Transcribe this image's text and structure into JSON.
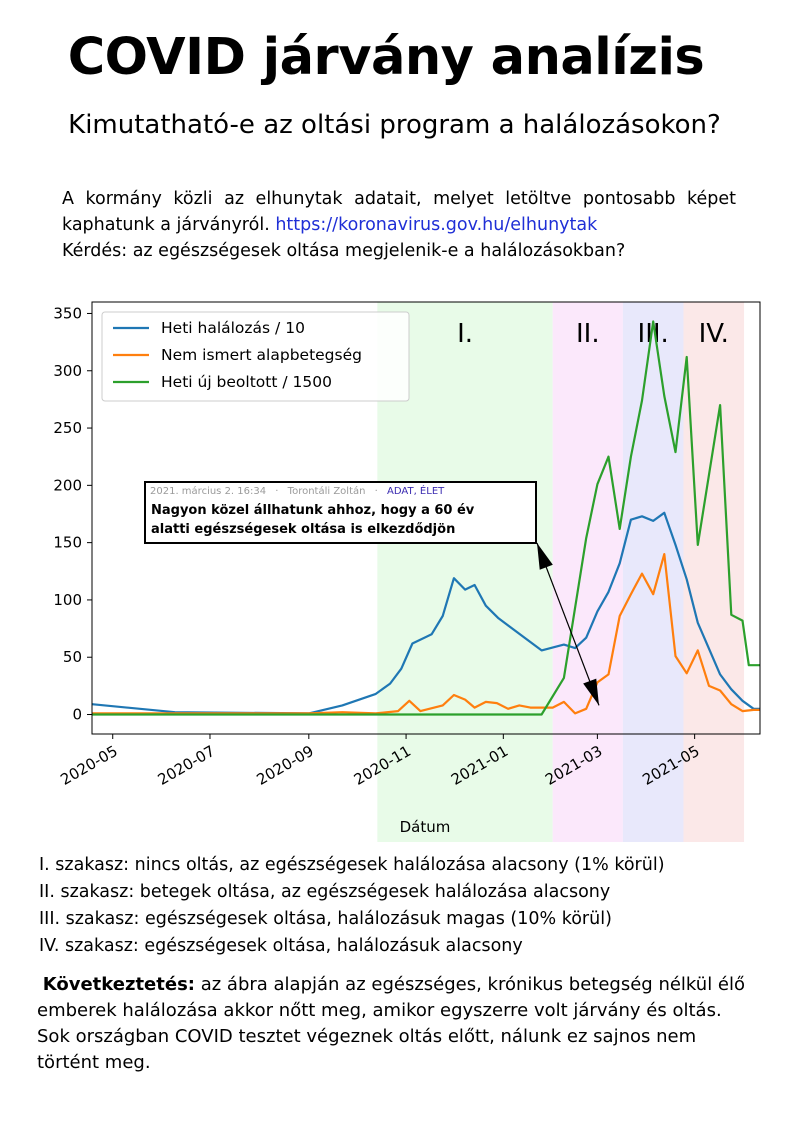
{
  "header": {
    "title": "COVID járvány analízis",
    "subtitle": "Kimutatható-e az oltási program a halálozásokon?"
  },
  "intro": {
    "line1": "A kormány közli az elhunytak adatait, melyet letöltve pontosabb képet kaphatunk a járványról.",
    "link": "https://koronavirus.gov.hu/elhunytak",
    "line2": "Kérdés: az egészségesek oltása megjelenik-e a halálozásokban?"
  },
  "chart_data": {
    "type": "line",
    "xlabel": "Dátum",
    "ylabel": "",
    "ylim": [
      -17,
      360
    ],
    "yticks": [
      0,
      50,
      100,
      150,
      200,
      250,
      300,
      350
    ],
    "xticks": [
      "2020-05",
      "2020-07",
      "2020-09",
      "2020-11",
      "2021-01",
      "2021-03",
      "2021-05"
    ],
    "xrange": [
      "2020-04-18",
      "2021-06-11"
    ],
    "grid": false,
    "legend": "top-left",
    "phases": [
      {
        "label": "I.",
        "start": "2020-10-14",
        "end": "2021-02-01",
        "color": "#e8fbe8"
      },
      {
        "label": "II.",
        "start": "2021-02-01",
        "end": "2021-03-17",
        "color": "#fbe8fb"
      },
      {
        "label": "III.",
        "start": "2021-03-17",
        "end": "2021-04-24",
        "color": "#e8e8fb"
      },
      {
        "label": "IV.",
        "start": "2021-04-24",
        "end": "2021-06-01",
        "color": "#fbe8e8"
      }
    ],
    "series": [
      {
        "name": "Heti halálozás / 10",
        "color": "#1f77b4",
        "x": [
          "2020-04-18",
          "2020-06-09",
          "2020-09-01",
          "2020-09-22",
          "2020-10-13",
          "2020-10-22",
          "2020-10-29",
          "2020-11-05",
          "2020-11-17",
          "2020-11-24",
          "2020-12-01",
          "2020-12-08",
          "2020-12-14",
          "2020-12-21",
          "2020-12-29",
          "2021-01-25",
          "2021-02-08",
          "2021-02-15",
          "2021-02-22",
          "2021-03-01",
          "2021-03-08",
          "2021-03-15",
          "2021-03-22",
          "2021-03-29",
          "2021-04-05",
          "2021-04-12",
          "2021-04-19",
          "2021-04-26",
          "2021-05-03",
          "2021-05-17",
          "2021-05-24",
          "2021-05-31",
          "2021-06-07",
          "2021-06-11"
        ],
        "y": [
          9,
          2,
          1,
          8,
          18,
          27,
          40,
          62,
          70,
          86,
          119,
          109,
          113,
          95,
          84,
          56,
          61,
          58,
          67,
          90,
          107,
          132,
          170,
          173,
          169,
          176,
          148,
          118,
          80,
          35,
          22,
          12,
          5,
          5
        ]
      },
      {
        "name": "Nem ismert alapbetegség",
        "color": "#ff7f0e",
        "x": [
          "2020-04-18",
          "2020-09-01",
          "2020-09-22",
          "2020-10-13",
          "2020-10-27",
          "2020-11-03",
          "2020-11-10",
          "2020-11-24",
          "2020-12-01",
          "2020-12-08",
          "2020-12-14",
          "2020-12-21",
          "2020-12-28",
          "2021-01-04",
          "2021-01-11",
          "2021-01-18",
          "2021-01-25",
          "2021-02-01",
          "2021-02-08",
          "2021-02-15",
          "2021-02-22",
          "2021-03-01",
          "2021-03-08",
          "2021-03-15",
          "2021-03-22",
          "2021-03-29",
          "2021-04-05",
          "2021-04-12",
          "2021-04-19",
          "2021-04-26",
          "2021-05-03",
          "2021-05-10",
          "2021-05-17",
          "2021-05-24",
          "2021-05-31",
          "2021-06-07",
          "2021-06-11"
        ],
        "y": [
          1,
          1,
          2,
          1,
          3,
          12,
          3,
          8,
          17,
          13,
          6,
          11,
          10,
          5,
          8,
          6,
          6,
          6,
          11,
          1,
          5,
          28,
          35,
          86,
          105,
          123,
          105,
          140,
          51,
          36,
          56,
          25,
          21,
          9,
          3,
          4,
          4
        ]
      },
      {
        "name": "Heti új beoltott / 1500",
        "color": "#2ca02c",
        "x": [
          "2020-04-18",
          "2021-01-25",
          "2021-02-08",
          "2021-02-22",
          "2021-03-01",
          "2021-03-08",
          "2021-03-15",
          "2021-03-22",
          "2021-03-29",
          "2021-04-05",
          "2021-04-12",
          "2021-04-19",
          "2021-04-26",
          "2021-05-03",
          "2021-05-17",
          "2021-05-24",
          "2021-05-31",
          "2021-06-04",
          "2021-06-11"
        ],
        "y": [
          0,
          0,
          32,
          154,
          201,
          225,
          162,
          225,
          274,
          343,
          278,
          229,
          312,
          148,
          270,
          87,
          82,
          43,
          43
        ]
      }
    ],
    "annotation": {
      "meta_date": "2021. március 2. 16:34",
      "meta_author": "Torontáli Zoltán",
      "meta_tags": "ADAT, ÉLET",
      "headline_1": "Nagyon közel állhatunk ahhoz, hogy a 60 év",
      "headline_2": "alatti egészségesek oltása is elkezdődjön",
      "arrow_target_date": "2021-03-02",
      "arrow_target_value": 8
    }
  },
  "notes": {
    "phase1": "I. szakasz: nincs oltás, az egészségesek halálozása alacsony (1% körül)",
    "phase2": "II. szakasz: betegek oltása, az egészségesek halálozása alacsony",
    "phase3": "III. szakasz: egészségesek oltása, halálozásuk magas (10% körül)",
    "phase4": "IV. szakasz: egészségesek oltása, halálozásuk alacsony"
  },
  "conclusion": {
    "label": "Következtetés:",
    "text": " az ábra alapján az egészséges, krónikus betegség nélkül élő emberek halálozása akkor nőtt meg, amikor egyszerre volt járvány és oltás. Sok országban COVID tesztet végeznek oltás előtt, nálunk ez sajnos nem történt meg."
  }
}
